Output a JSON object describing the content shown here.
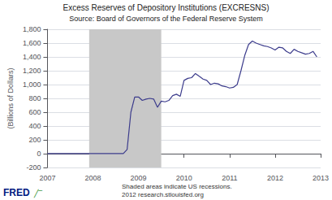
{
  "chart_data": {
    "type": "line",
    "title": "Excess Reserves of Depository Institutions (EXCRESNS)",
    "subtitle": "Source: Board of Governors of the Federal Reserve System",
    "ylabel": "(Billions of Dollars)",
    "notes": [
      "Shaded areas indicate US recessions.",
      "2012 research.stlouisfed.org"
    ],
    "logo": "FRED",
    "logo_mark": "╱‾",
    "shaded": {
      "x": [
        2007.917,
        2009.5
      ],
      "color": "#c8c8c8"
    },
    "color": "#3c3c8c",
    "grid": "y",
    "xlim": [
      2007.0,
      2013.0
    ],
    "xticks": [
      2007,
      2008,
      2009,
      2010,
      2011,
      2012,
      2013
    ],
    "ylim": [
      -200,
      1800
    ],
    "yticks": [
      -200,
      0,
      200,
      400,
      600,
      800,
      {
        "value": 1000,
        "label": "1,000"
      },
      {
        "value": 1200,
        "label": "1,200"
      },
      {
        "value": 1400,
        "label": "1,400"
      },
      {
        "value": 1600,
        "label": "1,600"
      },
      {
        "value": 1800,
        "label": "1,800"
      }
    ],
    "x": [
      2007.0,
      2007.083,
      2007.167,
      2007.25,
      2007.333,
      2007.417,
      2007.5,
      2007.583,
      2007.667,
      2007.75,
      2007.833,
      2007.917,
      2008.0,
      2008.083,
      2008.167,
      2008.25,
      2008.333,
      2008.417,
      2008.5,
      2008.583,
      2008.667,
      2008.75,
      2008.833,
      2008.917,
      2009.0,
      2009.083,
      2009.167,
      2009.25,
      2009.333,
      2009.417,
      2009.5,
      2009.583,
      2009.667,
      2009.75,
      2009.833,
      2009.917,
      2010.0,
      2010.083,
      2010.167,
      2010.25,
      2010.333,
      2010.417,
      2010.5,
      2010.583,
      2010.667,
      2010.75,
      2010.833,
      2010.917,
      2011.0,
      2011.083,
      2011.167,
      2011.25,
      2011.333,
      2011.417,
      2011.5,
      2011.583,
      2011.667,
      2011.75,
      2011.833,
      2011.917,
      2012.0,
      2012.083,
      2012.167,
      2012.25,
      2012.333,
      2012.417,
      2012.5,
      2012.583,
      2012.667,
      2012.75,
      2012.833,
      2012.917
    ],
    "values": [
      2,
      2,
      2,
      2,
      2,
      2,
      2,
      2,
      2,
      2,
      2,
      2,
      2,
      2,
      2,
      2,
      2,
      2,
      2,
      2,
      2,
      60,
      600,
      820,
      820,
      770,
      790,
      800,
      790,
      670,
      760,
      750,
      770,
      840,
      860,
      830,
      1060,
      1090,
      1100,
      1160,
      1120,
      1080,
      1060,
      1000,
      1020,
      1010,
      980,
      970,
      950,
      960,
      1000,
      1200,
      1420,
      1580,
      1630,
      1600,
      1580,
      1560,
      1550,
      1530,
      1500,
      1540,
      1530,
      1480,
      1450,
      1510,
      1480,
      1460,
      1440,
      1450,
      1480,
      1400
    ]
  }
}
